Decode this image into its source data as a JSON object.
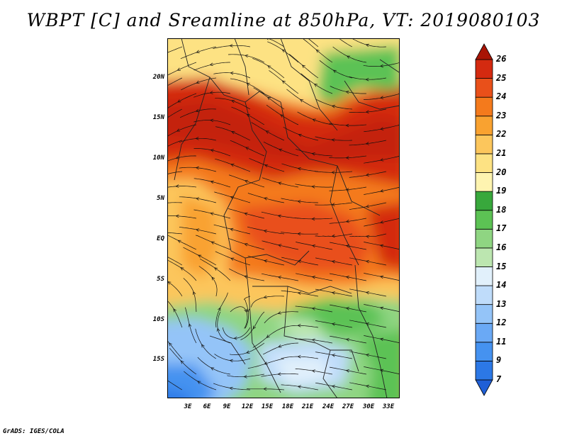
{
  "title": "WBPT [C] and Sreamline at 850hPa, VT: 2019080103",
  "credit": "GrADS: IGES/COLA",
  "map": {
    "lat_labels": [
      "20N",
      "15N",
      "10N",
      "5N",
      "EQ",
      "5S",
      "10S",
      "15S"
    ],
    "lon_labels": [
      "3E",
      "6E",
      "9E",
      "12E",
      "15E",
      "18E",
      "21E",
      "24E",
      "27E",
      "30E",
      "33E"
    ]
  },
  "colorbar": {
    "labels": [
      "7",
      "9",
      "11",
      "12",
      "13",
      "14",
      "15",
      "16",
      "17",
      "18",
      "19",
      "20",
      "21",
      "22",
      "23",
      "24",
      "25",
      "26"
    ],
    "colors": [
      "#1f5fd6",
      "#2c78e6",
      "#4592f0",
      "#6aa9f5",
      "#94c4f8",
      "#bfdcfa",
      "#e1f0fb",
      "#bce6b0",
      "#8fd582",
      "#5cc254",
      "#38a83c",
      "#fef4b0",
      "#fde283",
      "#fcc65c",
      "#f9a230",
      "#f47a1c",
      "#e9501a",
      "#d42a10",
      "#a81405"
    ]
  }
}
